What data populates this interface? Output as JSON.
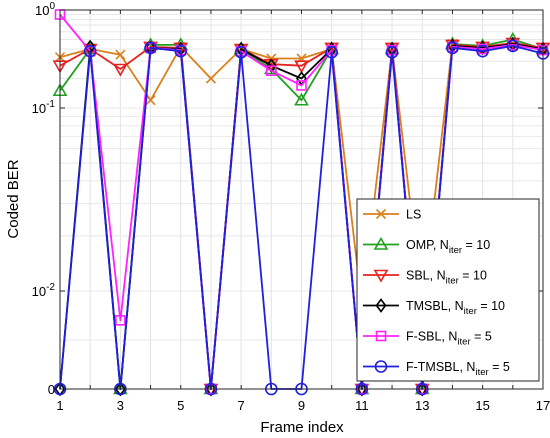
{
  "chart_data": {
    "type": "line",
    "title": "",
    "xlabel": "Frame index",
    "ylabel": "Coded BER",
    "x_ticks": [
      1,
      3,
      5,
      7,
      9,
      11,
      13,
      15,
      17
    ],
    "x_tick_labels": [
      "1",
      "3",
      "5",
      "7",
      "9",
      "11",
      "13",
      "15",
      "17"
    ],
    "xlim": [
      1,
      17
    ],
    "y_scale": "broken-log (0 at bottom, then 10^-2 up to 10^0)",
    "y_ticks": [
      {
        "value": 0,
        "base": "0",
        "exp": ""
      },
      {
        "value": 0.01,
        "base": "10",
        "exp": "-2"
      },
      {
        "value": 0.1,
        "base": "10",
        "exp": "-1"
      },
      {
        "value": 1,
        "base": "10",
        "exp": "0"
      }
    ],
    "grid": true,
    "legend_position": "lower-right",
    "x": [
      1,
      2,
      3,
      4,
      5,
      6,
      7,
      8,
      9,
      10,
      11,
      12,
      13,
      14,
      15,
      16,
      17
    ],
    "series": [
      {
        "name": "LS",
        "legend_sub": "",
        "legend_eq": "",
        "color": "#D9811E",
        "marker": "x",
        "values": [
          0.33,
          0.4,
          0.35,
          0.12,
          0.42,
          0.2,
          0.4,
          0.32,
          0.32,
          0.4,
          0.006,
          0.4,
          0.006,
          0.45,
          0.4,
          0.45,
          0.4
        ]
      },
      {
        "name": "OMP, N",
        "legend_sub": "iter",
        "legend_eq": " = 10",
        "color": "#22A022",
        "marker": "triangle-up",
        "values": [
          0.15,
          0.4,
          0,
          0.44,
          0.44,
          0,
          0.4,
          0.25,
          0.12,
          0.4,
          0,
          0.4,
          0,
          0.45,
          0.43,
          0.5,
          0.4
        ]
      },
      {
        "name": "SBL, N",
        "legend_sub": "iter",
        "legend_eq": " = 10",
        "color": "#E62222",
        "marker": "triangle-down",
        "values": [
          0.27,
          0.4,
          0.25,
          0.42,
          0.41,
          0,
          0.4,
          0.28,
          0.27,
          0.41,
          0,
          0.41,
          0,
          0.44,
          0.42,
          0.46,
          0.41
        ]
      },
      {
        "name": "TMSBL, N",
        "legend_sub": "iter",
        "legend_eq": " = 10",
        "color": "#000000",
        "marker": "diamond",
        "values": [
          0,
          0.42,
          0,
          0.41,
          0.4,
          0,
          0.4,
          0.27,
          0.2,
          0.4,
          0,
          0.4,
          0,
          0.43,
          0.41,
          0.45,
          0.4
        ]
      },
      {
        "name": "F-SBL, N",
        "legend_sub": "iter",
        "legend_eq": " = 5",
        "color": "#FF22FF",
        "marker": "square",
        "values": [
          0.9,
          0.38,
          0.0035,
          0.41,
          0.39,
          0,
          0.38,
          0.24,
          0.17,
          0.39,
          0,
          0.39,
          0,
          0.42,
          0.4,
          0.44,
          0.39
        ]
      },
      {
        "name": "F-TMSBL, N",
        "legend_sub": "iter",
        "legend_eq": " = 5",
        "color": "#1F1FE0",
        "marker": "circle",
        "values": [
          0,
          0.38,
          0,
          0.41,
          0.38,
          0,
          0.37,
          0,
          0,
          0.37,
          0,
          0.37,
          0,
          0.41,
          0.38,
          0.43,
          0.36
        ]
      }
    ]
  }
}
